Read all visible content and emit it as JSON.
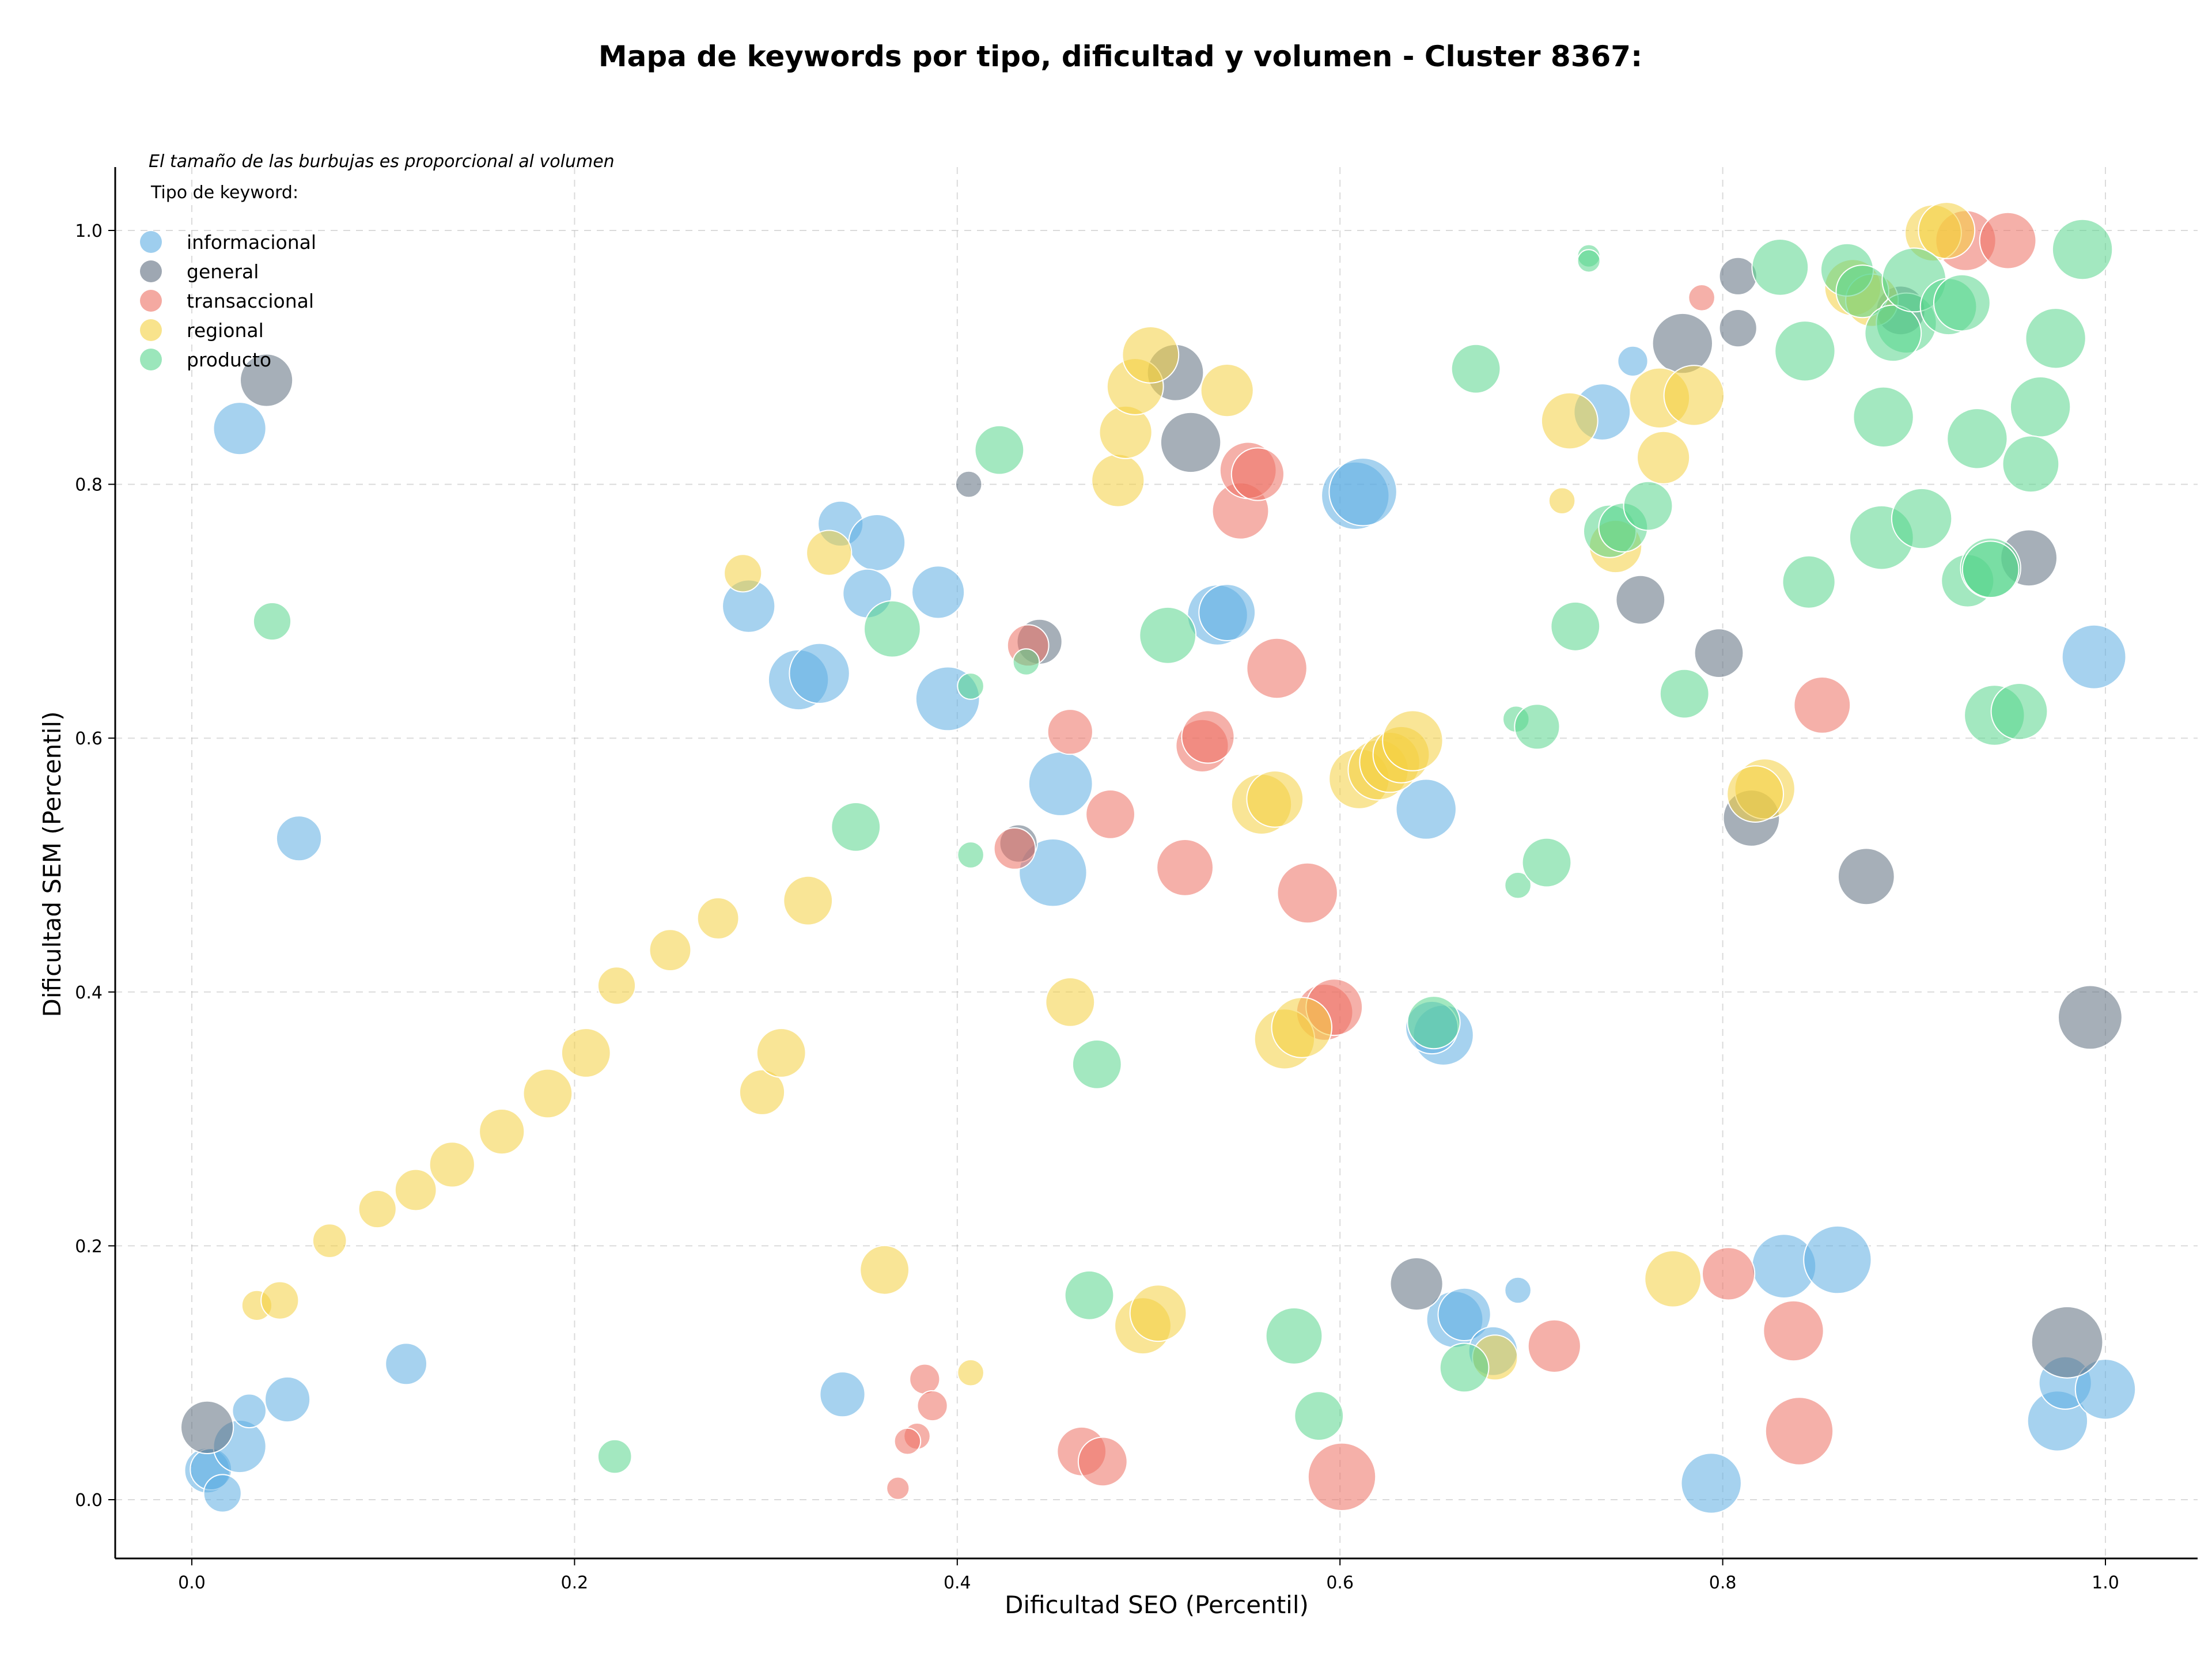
{
  "chart_data": {
    "type": "scatter",
    "title": "Mapa de keywords por tipo, dificultad y volumen - Cluster 8367:",
    "subtitle": "El tamaño de las burbujas es proporcional al volumen",
    "xlabel": "Dificultad SEO (Percentil)",
    "ylabel": "Dificultad SEM (Percentil)",
    "xlim": [
      -0.04,
      1.05
    ],
    "ylim": [
      -0.045,
      1.05
    ],
    "x_ticks": [
      "0.0",
      "0.2",
      "0.4",
      "0.6",
      "0.8",
      "1.0"
    ],
    "y_ticks": [
      "0.0",
      "0.2",
      "0.4",
      "0.6",
      "0.8",
      "1.0"
    ],
    "x_tick_values": [
      0,
      0.2,
      0.4,
      0.6,
      0.8,
      1.0
    ],
    "y_tick_values": [
      0,
      0.2,
      0.4,
      0.6,
      0.8,
      1.0
    ],
    "grid": true,
    "legend_title": "Tipo de keyword:",
    "legend_position": "top-left",
    "series": [
      {
        "name": "informacional",
        "color": "#5DADE2",
        "points": [
          [
            0.025,
            0.844,
            28
          ],
          [
            0.056,
            0.521,
            24
          ],
          [
            0.339,
            0.769,
            24
          ],
          [
            0.358,
            0.754,
            30
          ],
          [
            0.353,
            0.714,
            26
          ],
          [
            0.39,
            0.715,
            28
          ],
          [
            0.291,
            0.704,
            28
          ],
          [
            0.317,
            0.646,
            32
          ],
          [
            0.328,
            0.651,
            32
          ],
          [
            0.395,
            0.631,
            34
          ],
          [
            0.454,
            0.564,
            34
          ],
          [
            0.45,
            0.494,
            36
          ],
          [
            0.536,
            0.697,
            32
          ],
          [
            0.541,
            0.699,
            30
          ],
          [
            0.608,
            0.791,
            36
          ],
          [
            0.612,
            0.794,
            36
          ],
          [
            0.645,
            0.544,
            32
          ],
          [
            0.654,
            0.366,
            32
          ],
          [
            0.648,
            0.372,
            28
          ],
          [
            0.66,
            0.142,
            30
          ],
          [
            0.665,
            0.146,
            28
          ],
          [
            0.68,
            0.117,
            26
          ],
          [
            0.693,
            0.165,
            14
          ],
          [
            0.737,
            0.857,
            30
          ],
          [
            0.753,
            0.897,
            16
          ],
          [
            0.794,
            0.013,
            32
          ],
          [
            0.832,
            0.184,
            34
          ],
          [
            0.86,
            0.189,
            36
          ],
          [
            0.994,
            0.664,
            34
          ],
          [
            0.975,
            0.062,
            32
          ],
          [
            0.979,
            0.092,
            28
          ],
          [
            1.0,
            0.087,
            32
          ],
          [
            0.008,
            0.023,
            24
          ],
          [
            0.01,
            0.024,
            22
          ],
          [
            0.025,
            0.042,
            28
          ],
          [
            0.03,
            0.07,
            18
          ],
          [
            0.016,
            0.005,
            20
          ],
          [
            0.05,
            0.079,
            24
          ],
          [
            0.112,
            0.107,
            22
          ],
          [
            0.34,
            0.083,
            24
          ]
        ]
      },
      {
        "name": "general",
        "color": "#5D6D7E",
        "points": [
          [
            0.039,
            0.882,
            28
          ],
          [
            0.008,
            0.057,
            28
          ],
          [
            0.406,
            0.8,
            14
          ],
          [
            0.443,
            0.676,
            24
          ],
          [
            0.432,
            0.517,
            20
          ],
          [
            0.514,
            0.888,
            30
          ],
          [
            0.522,
            0.833,
            32
          ],
          [
            0.64,
            0.17,
            28
          ],
          [
            0.757,
            0.709,
            26
          ],
          [
            0.779,
            0.911,
            32
          ],
          [
            0.808,
            0.964,
            20
          ],
          [
            0.808,
            0.923,
            20
          ],
          [
            0.798,
            0.667,
            26
          ],
          [
            0.815,
            0.537,
            30
          ],
          [
            0.875,
            0.491,
            30
          ],
          [
            0.893,
            0.937,
            26
          ],
          [
            0.96,
            0.742,
            30
          ],
          [
            0.98,
            0.124,
            38
          ],
          [
            0.992,
            0.38,
            34
          ]
        ]
      },
      {
        "name": "transaccional",
        "color": "#EC7063",
        "points": [
          [
            0.437,
            0.673,
            22
          ],
          [
            0.43,
            0.513,
            22
          ],
          [
            0.459,
            0.605,
            24
          ],
          [
            0.48,
            0.54,
            26
          ],
          [
            0.548,
            0.779,
            30
          ],
          [
            0.552,
            0.811,
            30
          ],
          [
            0.557,
            0.808,
            28
          ],
          [
            0.528,
            0.594,
            28
          ],
          [
            0.531,
            0.601,
            28
          ],
          [
            0.519,
            0.498,
            30
          ],
          [
            0.567,
            0.655,
            32
          ],
          [
            0.583,
            0.478,
            32
          ],
          [
            0.592,
            0.384,
            30
          ],
          [
            0.597,
            0.388,
            30
          ],
          [
            0.383,
            0.095,
            16
          ],
          [
            0.387,
            0.074,
            16
          ],
          [
            0.379,
            0.05,
            14
          ],
          [
            0.374,
            0.046,
            14
          ],
          [
            0.369,
            0.009,
            12
          ],
          [
            0.465,
            0.038,
            26
          ],
          [
            0.476,
            0.03,
            26
          ],
          [
            0.601,
            0.018,
            36
          ],
          [
            0.712,
            0.121,
            28
          ],
          [
            0.789,
            0.947,
            14
          ],
          [
            0.803,
            0.178,
            28
          ],
          [
            0.837,
            0.133,
            32
          ],
          [
            0.852,
            0.626,
            30
          ],
          [
            0.84,
            0.054,
            36
          ],
          [
            0.927,
            0.992,
            32
          ],
          [
            0.949,
            0.992,
            30
          ]
        ]
      },
      {
        "name": "regional",
        "color": "#F4D03F",
        "points": [
          [
            0.034,
            0.153,
            16
          ],
          [
            0.046,
            0.157,
            20
          ],
          [
            0.072,
            0.204,
            18
          ],
          [
            0.097,
            0.229,
            20
          ],
          [
            0.117,
            0.244,
            22
          ],
          [
            0.136,
            0.264,
            24
          ],
          [
            0.162,
            0.29,
            24
          ],
          [
            0.186,
            0.32,
            26
          ],
          [
            0.206,
            0.352,
            26
          ],
          [
            0.222,
            0.405,
            20
          ],
          [
            0.25,
            0.433,
            22
          ],
          [
            0.275,
            0.458,
            22
          ],
          [
            0.288,
            0.73,
            20
          ],
          [
            0.298,
            0.321,
            24
          ],
          [
            0.308,
            0.352,
            26
          ],
          [
            0.322,
            0.472,
            26
          ],
          [
            0.333,
            0.746,
            24
          ],
          [
            0.362,
            0.181,
            26
          ],
          [
            0.407,
            0.1,
            14
          ],
          [
            0.459,
            0.392,
            26
          ],
          [
            0.484,
            0.803,
            28
          ],
          [
            0.488,
            0.841,
            28
          ],
          [
            0.493,
            0.877,
            30
          ],
          [
            0.501,
            0.902,
            30
          ],
          [
            0.497,
            0.137,
            30
          ],
          [
            0.505,
            0.147,
            30
          ],
          [
            0.541,
            0.874,
            28
          ],
          [
            0.559,
            0.548,
            32
          ],
          [
            0.566,
            0.552,
            30
          ],
          [
            0.571,
            0.363,
            32
          ],
          [
            0.58,
            0.372,
            32
          ],
          [
            0.61,
            0.568,
            32
          ],
          [
            0.62,
            0.575,
            32
          ],
          [
            0.626,
            0.581,
            32
          ],
          [
            0.632,
            0.587,
            30
          ],
          [
            0.638,
            0.598,
            32
          ],
          [
            0.681,
            0.112,
            24
          ],
          [
            0.716,
            0.787,
            14
          ],
          [
            0.72,
            0.85,
            30
          ],
          [
            0.744,
            0.751,
            28
          ],
          [
            0.767,
            0.868,
            32
          ],
          [
            0.774,
            0.174,
            30
          ],
          [
            0.769,
            0.821,
            28
          ],
          [
            0.785,
            0.87,
            32
          ],
          [
            0.822,
            0.56,
            32
          ],
          [
            0.817,
            0.556,
            30
          ],
          [
            0.868,
            0.955,
            30
          ],
          [
            0.878,
            0.945,
            28
          ],
          [
            0.91,
            0.998,
            30
          ],
          [
            0.917,
            1.0,
            30
          ]
        ]
      },
      {
        "name": "producto",
        "color": "#58D68D",
        "points": [
          [
            0.042,
            0.692,
            20
          ],
          [
            0.366,
            0.686,
            30
          ],
          [
            0.347,
            0.53,
            26
          ],
          [
            0.407,
            0.641,
            14
          ],
          [
            0.407,
            0.508,
            14
          ],
          [
            0.422,
            0.827,
            26
          ],
          [
            0.436,
            0.66,
            14
          ],
          [
            0.473,
            0.343,
            26
          ],
          [
            0.469,
            0.161,
            26
          ],
          [
            0.51,
            0.681,
            30
          ],
          [
            0.576,
            0.129,
            30
          ],
          [
            0.589,
            0.066,
            26
          ],
          [
            0.649,
            0.376,
            28
          ],
          [
            0.665,
            0.104,
            26
          ],
          [
            0.671,
            0.891,
            26
          ],
          [
            0.692,
            0.615,
            14
          ],
          [
            0.693,
            0.484,
            14
          ],
          [
            0.703,
            0.609,
            24
          ],
          [
            0.708,
            0.502,
            26
          ],
          [
            0.723,
            0.688,
            26
          ],
          [
            0.73,
            0.98,
            12
          ],
          [
            0.73,
            0.976,
            12
          ],
          [
            0.741,
            0.763,
            28
          ],
          [
            0.748,
            0.766,
            26
          ],
          [
            0.761,
            0.783,
            26
          ],
          [
            0.78,
            0.635,
            26
          ],
          [
            0.83,
            0.971,
            30
          ],
          [
            0.845,
            0.723,
            28
          ],
          [
            0.843,
            0.905,
            32
          ],
          [
            0.865,
            0.969,
            28
          ],
          [
            0.873,
            0.952,
            28
          ],
          [
            0.883,
            0.758,
            34
          ],
          [
            0.896,
            0.927,
            32
          ],
          [
            0.889,
            0.919,
            30
          ],
          [
            0.884,
            0.853,
            32
          ],
          [
            0.904,
            0.773,
            32
          ],
          [
            0.9,
            0.961,
            34
          ],
          [
            0.918,
            0.94,
            30
          ],
          [
            0.925,
            0.943,
            30
          ],
          [
            0.933,
            0.836,
            32
          ],
          [
            0.928,
            0.724,
            28
          ],
          [
            0.94,
            0.734,
            32
          ],
          [
            0.942,
            0.618,
            32
          ],
          [
            0.955,
            0.621,
            30
          ],
          [
            0.966,
            0.861,
            32
          ],
          [
            0.961,
            0.816,
            30
          ],
          [
            0.974,
            0.915,
            32
          ],
          [
            0.988,
            0.985,
            32
          ],
          [
            0.221,
            0.034,
            18
          ],
          [
            0.94,
            0.733,
            30
          ]
        ]
      }
    ]
  }
}
